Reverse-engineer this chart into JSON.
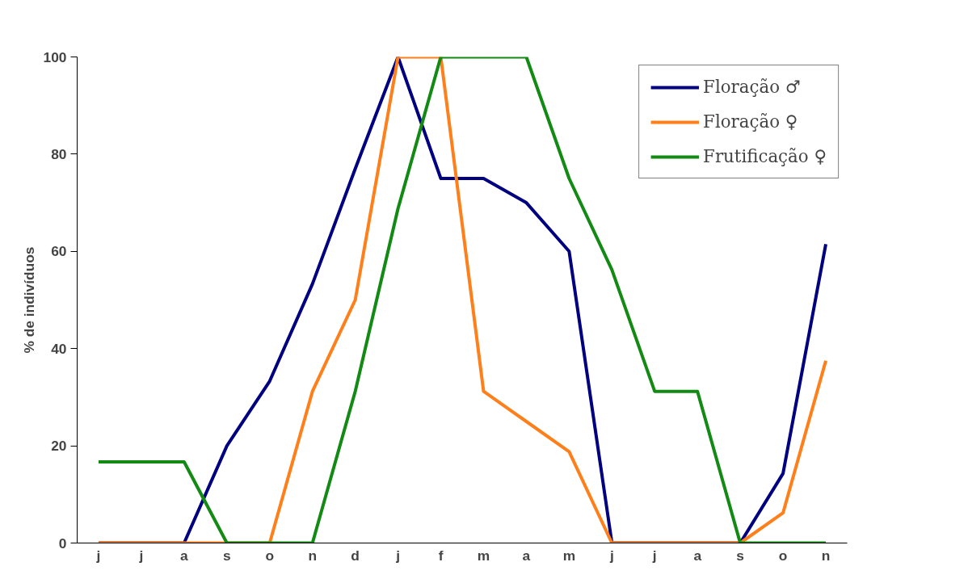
{
  "chart_data": {
    "type": "line",
    "ylabel": "% de indivíduos",
    "categories": [
      "j",
      "j",
      "a",
      "s",
      "o",
      "n",
      "d",
      "j",
      "f",
      "m",
      "a",
      "m",
      "j",
      "j",
      "a",
      "s",
      "o",
      "n"
    ],
    "ylim": [
      0,
      100
    ],
    "yticks": [
      0,
      20,
      40,
      60,
      80,
      100
    ],
    "grid": false,
    "legend": "top right",
    "marker": "none",
    "line_style": "solid",
    "series": [
      {
        "name": "Floração ♂",
        "color": "#000080",
        "values": [
          0,
          0,
          0,
          20,
          33.3,
          53.3,
          77,
          100,
          75,
          75,
          70,
          60,
          0,
          0,
          0,
          0,
          14.3,
          61.5
        ]
      },
      {
        "name": "Floração ♀",
        "color": "#ff7f1a",
        "values": [
          0,
          0,
          0,
          0,
          0,
          31.2,
          50,
          100,
          100,
          31.2,
          25,
          18.8,
          0,
          0,
          0,
          0,
          6.2,
          37.5
        ]
      },
      {
        "name": "Frutificação ♀",
        "color": "#138a13",
        "values": [
          16.7,
          16.7,
          16.7,
          0,
          0,
          0,
          31.2,
          68.8,
          100,
          100,
          100,
          75,
          56.2,
          31.2,
          31.2,
          0,
          0,
          0
        ]
      }
    ]
  }
}
